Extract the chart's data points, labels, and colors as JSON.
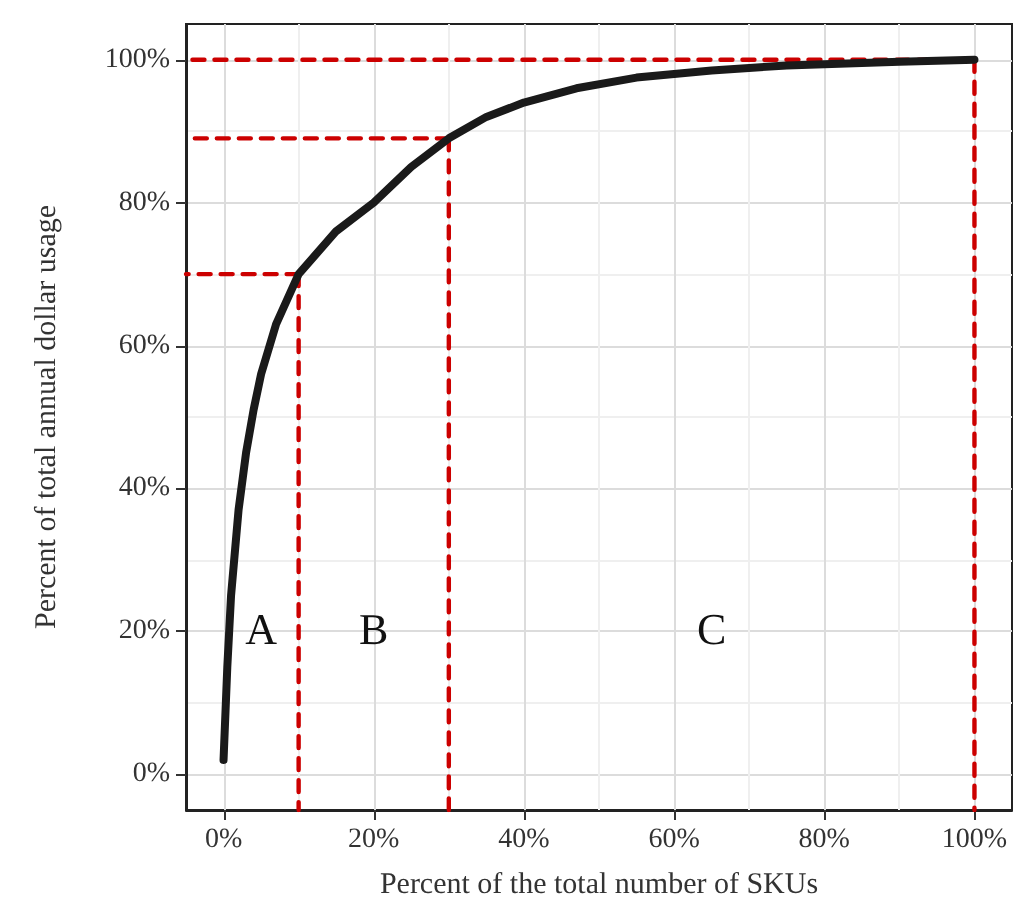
{
  "chart_data": {
    "type": "line",
    "xlabel": "Percent of the total number of SKUs",
    "ylabel": "Percent of total annual dollar usage",
    "xlim": [
      -5,
      105
    ],
    "ylim": [
      -5,
      105
    ],
    "xticks": [
      {
        "value": 0,
        "label": "0%"
      },
      {
        "value": 20,
        "label": "20%"
      },
      {
        "value": 40,
        "label": "40%"
      },
      {
        "value": 60,
        "label": "60%"
      },
      {
        "value": 80,
        "label": "80%"
      },
      {
        "value": 100,
        "label": "100%"
      }
    ],
    "yticks": [
      {
        "value": 0,
        "label": "0%"
      },
      {
        "value": 20,
        "label": "20%"
      },
      {
        "value": 40,
        "label": "40%"
      },
      {
        "value": 60,
        "label": "60%"
      },
      {
        "value": 80,
        "label": "80%"
      },
      {
        "value": 100,
        "label": "100%"
      }
    ],
    "grid": true,
    "marker": "none",
    "series": [
      {
        "color": "#1a1a1a",
        "line_style": "solid",
        "x": [
          0,
          0.5,
          1,
          2,
          3,
          4,
          5,
          7,
          10,
          15,
          20,
          25,
          30,
          35,
          40,
          47,
          55,
          65,
          75,
          90,
          100
        ],
        "values": [
          2,
          15,
          25,
          37,
          45,
          51,
          56,
          63,
          70,
          76,
          80,
          85,
          89,
          92,
          94,
          96,
          97.5,
          98.5,
          99.2,
          99.7,
          100
        ]
      },
      {
        "color": "#cc0000",
        "line_style": "dashed",
        "x": [
          10,
          -5
        ],
        "values": [
          70,
          70
        ]
      },
      {
        "color": "#cc0000",
        "line_style": "dashed",
        "x": [
          10,
          10
        ],
        "values": [
          70,
          -5
        ]
      },
      {
        "color": "#cc0000",
        "line_style": "dashed",
        "x": [
          30,
          -5
        ],
        "values": [
          89,
          89
        ]
      },
      {
        "color": "#cc0000",
        "line_style": "dashed",
        "x": [
          30,
          30
        ],
        "values": [
          89,
          -5
        ]
      },
      {
        "color": "#cc0000",
        "line_style": "dashed",
        "x": [
          100,
          -5
        ],
        "values": [
          100,
          100
        ]
      },
      {
        "color": "#cc0000",
        "line_style": "dashed",
        "x": [
          100,
          100
        ],
        "values": [
          100,
          -5
        ]
      }
    ],
    "annotations": [
      "A",
      "B",
      "C"
    ]
  }
}
